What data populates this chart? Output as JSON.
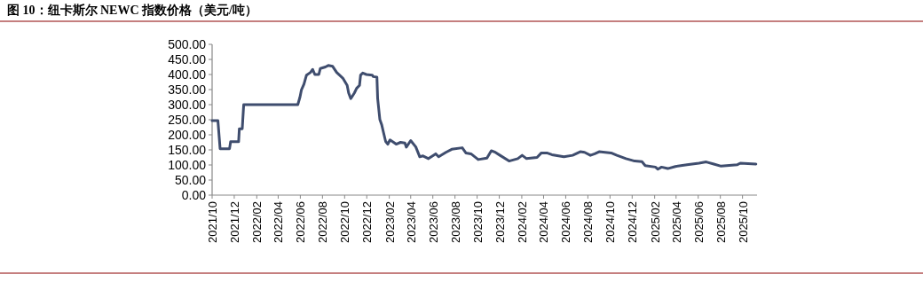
{
  "chart_data": {
    "type": "line",
    "title": "图 10：纽卡斯尔 NEWC 指数价格（美元/吨）",
    "xlim": [
      "2021-10-01",
      "2025-11-10"
    ],
    "xticks": [
      {
        "value": "2021-10",
        "label": "2021/10"
      },
      {
        "value": "2021-12",
        "label": "2021/12"
      },
      {
        "value": "2022-02",
        "label": "2022/02"
      },
      {
        "value": "2022-04",
        "label": "2022/04"
      },
      {
        "value": "2022-06",
        "label": "2022/06"
      },
      {
        "value": "2022-08",
        "label": "2022/08"
      },
      {
        "value": "2022-10",
        "label": "2022/10"
      },
      {
        "value": "2022-12",
        "label": "2022/12"
      },
      {
        "value": "2023-02",
        "label": "2023/02"
      },
      {
        "value": "2023-04",
        "label": "2023/04"
      },
      {
        "value": "2023-06",
        "label": "2023/06"
      },
      {
        "value": "2023-08",
        "label": "2023/08"
      },
      {
        "value": "2023-10",
        "label": "2023/10"
      },
      {
        "value": "2023-12",
        "label": "2023/12"
      },
      {
        "value": "2024-02",
        "label": "2024/02"
      },
      {
        "value": "2024-04",
        "label": "2024/04"
      },
      {
        "value": "2024-06",
        "label": "2024/06"
      },
      {
        "value": "2024-08",
        "label": "2024/08"
      },
      {
        "value": "2024-10",
        "label": "2024/10"
      },
      {
        "value": "2024-12",
        "label": "2024/12"
      },
      {
        "value": "2025-02",
        "label": "2025/02"
      },
      {
        "value": "2025-04",
        "label": "2025/04"
      },
      {
        "value": "2025-06",
        "label": "2025/06"
      },
      {
        "value": "2025-08",
        "label": "2025/08"
      },
      {
        "value": "2025-10",
        "label": "2025/10"
      }
    ],
    "ylim": [
      0,
      500
    ],
    "yticks": [
      {
        "value": 0,
        "label": "0.00"
      },
      {
        "value": 50,
        "label": "50.00"
      },
      {
        "value": 100,
        "label": "100.00"
      },
      {
        "value": 150,
        "label": "150.00"
      },
      {
        "value": 200,
        "label": "200.00"
      },
      {
        "value": 250,
        "label": "250.00"
      },
      {
        "value": 300,
        "label": "300.00"
      },
      {
        "value": 350,
        "label": "350.00"
      },
      {
        "value": 400,
        "label": "400.00"
      },
      {
        "value": 450,
        "label": "450.00"
      },
      {
        "value": 500,
        "label": "500.00"
      }
    ],
    "grid": false,
    "marker": "none",
    "line_style": "solid",
    "x": [
      "2021-10-01",
      "2021-10-17",
      "2021-10-23",
      "2021-11-18",
      "2021-11-21",
      "2021-12-13",
      "2021-12-15",
      "2021-12-23",
      "2021-12-27",
      "2022-05-25",
      "2022-05-31",
      "2022-06-04",
      "2022-06-11",
      "2022-06-18",
      "2022-06-29",
      "2022-07-05",
      "2022-07-11",
      "2022-07-22",
      "2022-07-26",
      "2022-08-09",
      "2022-08-17",
      "2022-08-29",
      "2022-09-09",
      "2022-09-26",
      "2022-10-08",
      "2022-10-12",
      "2022-10-18",
      "2022-10-28",
      "2022-11-03",
      "2022-11-11",
      "2022-11-14",
      "2022-11-20",
      "2022-11-30",
      "2022-12-16",
      "2022-12-19",
      "2022-12-29",
      "2022-12-31",
      "2023-01-06",
      "2023-01-11",
      "2023-01-16",
      "2023-01-22",
      "2023-01-28",
      "2023-02-03",
      "2023-02-13",
      "2023-02-20",
      "2023-03-04",
      "2023-03-16",
      "2023-03-20",
      "2023-04-01",
      "2023-04-15",
      "2023-04-26",
      "2023-05-05",
      "2023-05-20",
      "2023-06-09",
      "2023-06-17",
      "2023-07-07",
      "2023-07-23",
      "2023-08-21",
      "2023-08-31",
      "2023-09-14",
      "2023-10-04",
      "2023-10-28",
      "2023-11-09",
      "2023-11-20",
      "2023-12-03",
      "2023-12-28",
      "2024-01-21",
      "2024-02-02",
      "2024-02-14",
      "2024-03-14",
      "2024-03-26",
      "2024-04-10",
      "2024-04-24",
      "2024-05-27",
      "2024-06-20",
      "2024-07-11",
      "2024-07-23",
      "2024-08-08",
      "2024-08-20",
      "2024-09-01",
      "2024-10-04",
      "2024-10-20",
      "2024-11-14",
      "2024-12-08",
      "2024-12-28",
      "2025-01-06",
      "2025-02-03",
      "2025-02-10",
      "2025-02-20",
      "2025-03-09",
      "2025-03-30",
      "2025-05-01",
      "2025-06-03",
      "2025-06-23",
      "2025-07-14",
      "2025-08-03",
      "2025-09-17",
      "2025-09-25",
      "2025-11-07"
    ],
    "series": [
      {
        "color": "#3f4d6e",
        "values": [
          247,
          247,
          154,
          154,
          177,
          177,
          220,
          220,
          300,
          300,
          325,
          349,
          368,
          398,
          407,
          417,
          400,
          400,
          420,
          425,
          430,
          427,
          407,
          388,
          364,
          339,
          320,
          339,
          354,
          364,
          398,
          405,
          400,
          398,
          393,
          391,
          320,
          251,
          234,
          208,
          178,
          169,
          183,
          175,
          169,
          175,
          173,
          159,
          181,
          160,
          127,
          130,
          121,
          137,
          127,
          142,
          152,
          157,
          140,
          137,
          118,
          123,
          147,
          142,
          132,
          113,
          121,
          132,
          121,
          125,
          140,
          140,
          134,
          127,
          132,
          144,
          142,
          132,
          137,
          144,
          140,
          132,
          121,
          113,
          111,
          98,
          93,
          86,
          93,
          88,
          95,
          101,
          106,
          110,
          103,
          96,
          101,
          106,
          103
        ]
      }
    ]
  }
}
